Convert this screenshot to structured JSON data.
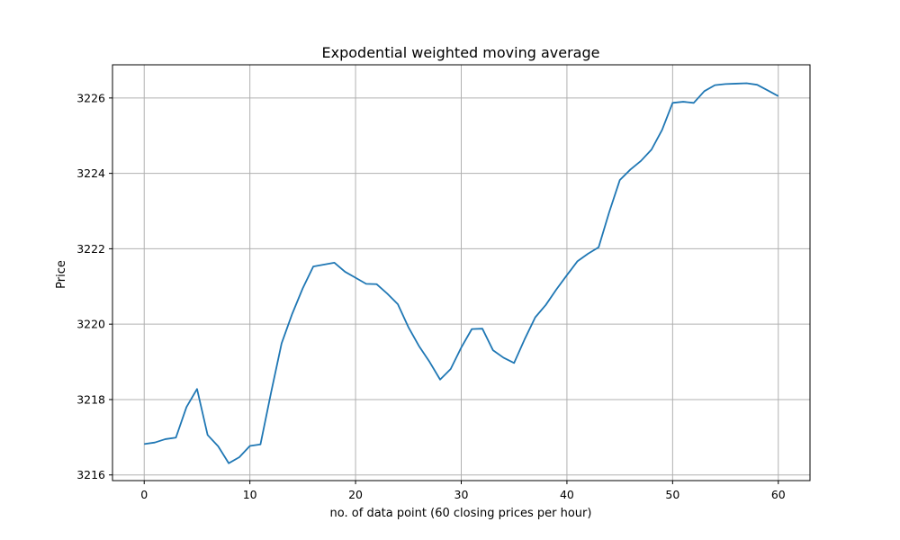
{
  "chart_data": {
    "type": "line",
    "title": "Expodential weighted moving average",
    "xlabel": "no. of data point (60 closing prices per hour)",
    "ylabel": "Price",
    "xlim": [
      -3,
      63
    ],
    "ylim": [
      3215.85,
      3226.88
    ],
    "xticks": [
      0,
      10,
      20,
      30,
      40,
      50,
      60
    ],
    "yticks": [
      3216,
      3218,
      3220,
      3222,
      3224,
      3226
    ],
    "grid": true,
    "line_color": "#1f77b4",
    "series": [
      {
        "x": [
          0,
          1,
          2,
          3,
          4,
          5,
          6,
          7,
          8,
          9,
          10,
          11,
          12,
          13,
          14,
          15,
          16,
          17,
          18,
          19,
          20,
          21,
          22,
          23,
          24,
          25,
          26,
          27,
          28,
          29,
          30,
          31,
          32,
          33,
          34,
          35,
          36,
          37,
          38,
          39,
          40,
          41,
          42,
          43,
          44,
          45,
          46,
          47,
          48,
          49,
          50,
          51,
          52,
          53,
          54,
          55,
          56,
          57,
          58,
          59,
          60
        ],
        "values": [
          3216.82,
          3216.86,
          3216.95,
          3216.99,
          3217.8,
          3218.28,
          3217.06,
          3216.76,
          3216.31,
          3216.47,
          3216.77,
          3216.81,
          3218.18,
          3219.49,
          3220.27,
          3220.95,
          3221.53,
          3221.58,
          3221.63,
          3221.39,
          3221.23,
          3221.07,
          3221.06,
          3220.81,
          3220.53,
          3219.92,
          3219.42,
          3219.0,
          3218.53,
          3218.81,
          3219.38,
          3219.87,
          3219.88,
          3219.31,
          3219.11,
          3218.97,
          3219.6,
          3220.18,
          3220.51,
          3220.92,
          3221.3,
          3221.67,
          3221.87,
          3222.04,
          3222.97,
          3223.82,
          3224.1,
          3224.33,
          3224.63,
          3225.15,
          3225.87,
          3225.9,
          3225.87,
          3226.18,
          3226.34,
          3226.37,
          3226.38,
          3226.39,
          3226.35,
          3226.2,
          3226.05
        ]
      }
    ]
  }
}
